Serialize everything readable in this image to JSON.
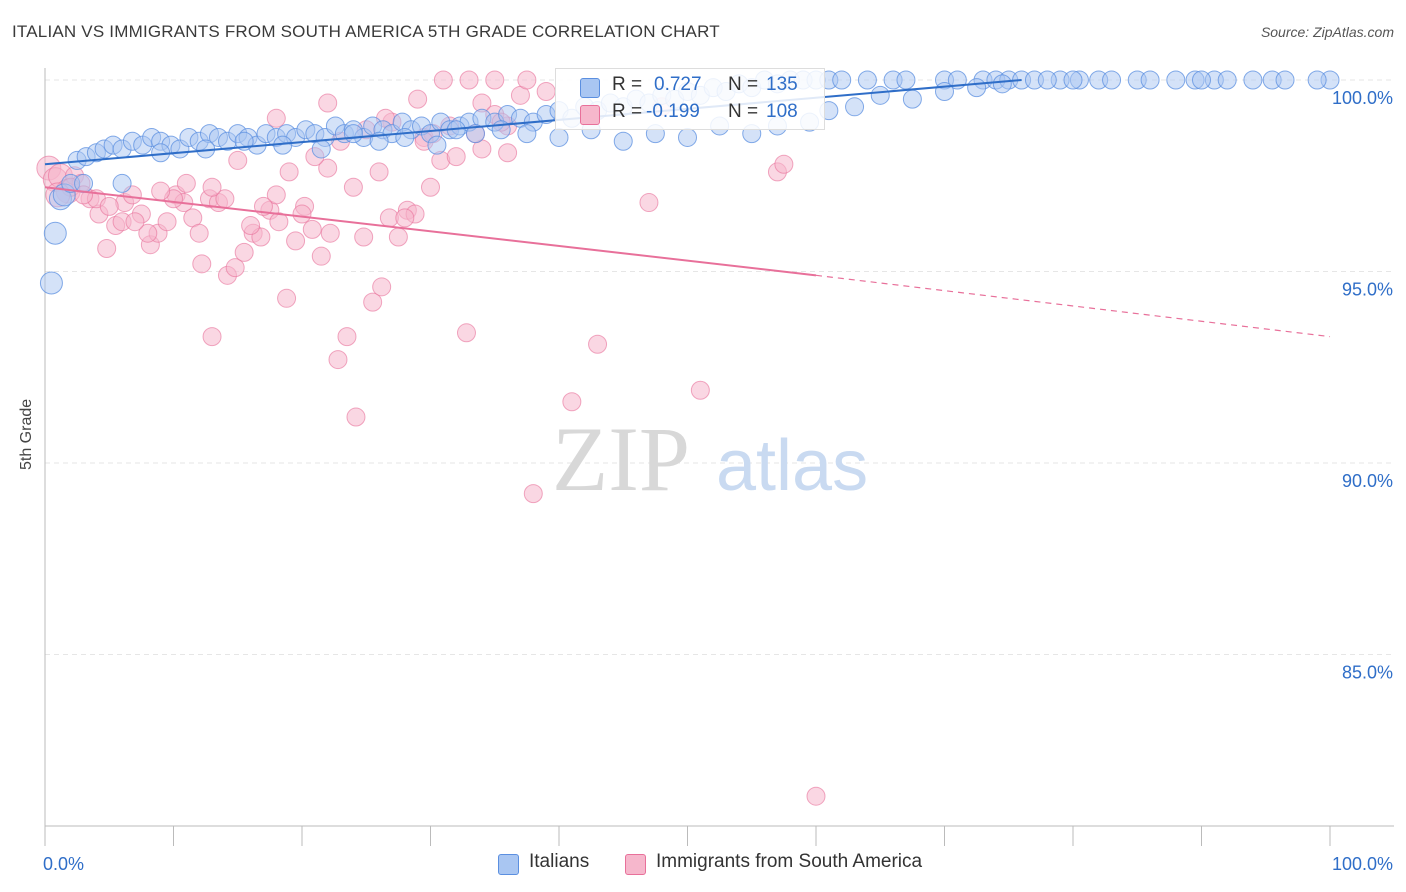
{
  "header": {
    "title": "ITALIAN VS IMMIGRANTS FROM SOUTH AMERICA 5TH GRADE CORRELATION CHART",
    "source": "Source: ZipAtlas.com"
  },
  "watermark": {
    "zip": "ZIP",
    "atlas": "atlas"
  },
  "colors": {
    "blue": "#5b8fe0",
    "blue_fill": "#a9c6f2",
    "pink": "#e8709a",
    "pink_fill": "#f6b7cc",
    "value_text": "#2f6ec8"
  },
  "stats": {
    "italians": {
      "r_label": "R =",
      "r_value": "0.727",
      "n_label": "N =",
      "n_value": "135"
    },
    "immigrants": {
      "r_label": "R =",
      "r_value": "-0.199",
      "n_label": "N =",
      "n_value": "108"
    }
  },
  "legend": {
    "italians": "Italians",
    "immigrants": "Immigrants from South America"
  },
  "chart_data": {
    "type": "scatter",
    "title": "ITALIAN VS IMMIGRANTS FROM SOUTH AMERICA 5TH GRADE CORRELATION CHART",
    "xlabel": "",
    "ylabel": "5th Grade",
    "xlim": [
      0,
      100
    ],
    "ylim": [
      80.3,
      100.6
    ],
    "x_tick_labels": [
      "0.0%",
      "100.0%"
    ],
    "y_ticks": [
      100,
      95,
      90,
      85
    ],
    "y_tick_labels": [
      "100.0%",
      "95.0%",
      "90.0%",
      "85.0%"
    ],
    "grid": true,
    "series": [
      {
        "name": "Italians",
        "color": "#5b8fe0",
        "r": 0.727,
        "n": 135,
        "trend": {
          "x": [
            0,
            76
          ],
          "y": [
            97.8,
            100.0
          ]
        },
        "points": [
          [
            0.5,
            94.7
          ],
          [
            0.8,
            96.0
          ],
          [
            1.2,
            96.9
          ],
          [
            1.5,
            97.0
          ],
          [
            2.0,
            97.3
          ],
          [
            2.5,
            97.9
          ],
          [
            3.2,
            98.0
          ],
          [
            4.0,
            98.1
          ],
          [
            4.6,
            98.2
          ],
          [
            5.3,
            98.3
          ],
          [
            6.0,
            98.2
          ],
          [
            6.8,
            98.4
          ],
          [
            7.6,
            98.3
          ],
          [
            8.3,
            98.5
          ],
          [
            9.0,
            98.4
          ],
          [
            9.8,
            98.3
          ],
          [
            10.5,
            98.2
          ],
          [
            11.2,
            98.5
          ],
          [
            12.0,
            98.4
          ],
          [
            12.8,
            98.6
          ],
          [
            13.5,
            98.5
          ],
          [
            14.2,
            98.4
          ],
          [
            15.0,
            98.6
          ],
          [
            15.8,
            98.5
          ],
          [
            16.5,
            98.3
          ],
          [
            17.2,
            98.6
          ],
          [
            18.0,
            98.5
          ],
          [
            18.8,
            98.6
          ],
          [
            19.5,
            98.5
          ],
          [
            20.3,
            98.7
          ],
          [
            21.0,
            98.6
          ],
          [
            21.8,
            98.5
          ],
          [
            22.6,
            98.8
          ],
          [
            23.3,
            98.6
          ],
          [
            24.0,
            98.7
          ],
          [
            24.8,
            98.5
          ],
          [
            25.5,
            98.8
          ],
          [
            26.3,
            98.7
          ],
          [
            27.0,
            98.6
          ],
          [
            27.8,
            98.9
          ],
          [
            28.5,
            98.7
          ],
          [
            29.3,
            98.8
          ],
          [
            30.0,
            98.6
          ],
          [
            30.8,
            98.9
          ],
          [
            31.5,
            98.7
          ],
          [
            32.3,
            98.8
          ],
          [
            33.0,
            98.9
          ],
          [
            34.0,
            99.0
          ],
          [
            35.0,
            98.9
          ],
          [
            36.0,
            99.1
          ],
          [
            37.0,
            99.0
          ],
          [
            38.0,
            98.9
          ],
          [
            39.0,
            99.1
          ],
          [
            40.0,
            99.2
          ],
          [
            41.0,
            99.0
          ],
          [
            42.0,
            99.3
          ],
          [
            43.0,
            99.2
          ],
          [
            44.0,
            99.4
          ],
          [
            45.0,
            99.3
          ],
          [
            46.0,
            99.5
          ],
          [
            47.0,
            99.4
          ],
          [
            48.0,
            99.6
          ],
          [
            49.0,
            99.5
          ],
          [
            50.0,
            99.7
          ],
          [
            51.0,
            99.6
          ],
          [
            52.0,
            99.8
          ],
          [
            53.0,
            99.7
          ],
          [
            54.0,
            99.9
          ],
          [
            55.0,
            99.8
          ],
          [
            56.0,
            100.0
          ],
          [
            57.0,
            99.9
          ],
          [
            58.0,
            100.0
          ],
          [
            59.0,
            100.0
          ],
          [
            60.0,
            100.0
          ],
          [
            61.0,
            100.0
          ],
          [
            62.0,
            100.0
          ],
          [
            64.0,
            100.0
          ],
          [
            66.0,
            100.0
          ],
          [
            67.0,
            100.0
          ],
          [
            70.0,
            100.0
          ],
          [
            71.0,
            100.0
          ],
          [
            73.0,
            100.0
          ],
          [
            74.0,
            100.0
          ],
          [
            75.0,
            100.0
          ],
          [
            76.0,
            100.0
          ],
          [
            79.0,
            100.0
          ],
          [
            80.5,
            100.0
          ],
          [
            82.0,
            100.0
          ],
          [
            85.0,
            100.0
          ],
          [
            88.0,
            100.0
          ],
          [
            89.5,
            100.0
          ],
          [
            91.0,
            100.0
          ],
          [
            94.0,
            100.0
          ],
          [
            95.5,
            100.0
          ],
          [
            96.5,
            100.0
          ],
          [
            100.0,
            100.0
          ],
          [
            3.0,
            97.3
          ],
          [
            6.0,
            97.3
          ],
          [
            9.0,
            98.1
          ],
          [
            12.5,
            98.2
          ],
          [
            15.5,
            98.4
          ],
          [
            18.5,
            98.3
          ],
          [
            21.5,
            98.2
          ],
          [
            24.0,
            98.6
          ],
          [
            26.0,
            98.4
          ],
          [
            28.0,
            98.5
          ],
          [
            30.5,
            98.3
          ],
          [
            32.0,
            98.7
          ],
          [
            33.5,
            98.6
          ],
          [
            35.5,
            98.7
          ],
          [
            37.5,
            98.6
          ],
          [
            40.0,
            98.5
          ],
          [
            42.5,
            98.7
          ],
          [
            45.0,
            98.4
          ],
          [
            47.5,
            98.6
          ],
          [
            50.0,
            98.5
          ],
          [
            52.5,
            98.8
          ],
          [
            55.0,
            98.6
          ],
          [
            57.0,
            98.8
          ],
          [
            59.5,
            98.9
          ],
          [
            61.0,
            99.2
          ],
          [
            63.0,
            99.3
          ],
          [
            65.0,
            99.6
          ],
          [
            67.5,
            99.5
          ],
          [
            70.0,
            99.7
          ],
          [
            72.5,
            99.8
          ],
          [
            74.5,
            99.9
          ],
          [
            77.0,
            100.0
          ],
          [
            78.0,
            100.0
          ],
          [
            80.0,
            100.0
          ],
          [
            83.0,
            100.0
          ],
          [
            86.0,
            100.0
          ],
          [
            90.0,
            100.0
          ],
          [
            92.0,
            100.0
          ],
          [
            99.0,
            100.0
          ]
        ]
      },
      {
        "name": "Immigrants from South America",
        "color": "#e8709a",
        "r": -0.199,
        "n": 108,
        "trend": {
          "x": [
            0,
            60
          ],
          "y": [
            97.2,
            94.9
          ]
        },
        "trend_dashed": {
          "x": [
            60,
            100
          ],
          "y": [
            94.9,
            93.3
          ]
        },
        "points": [
          [
            0.3,
            97.7
          ],
          [
            0.8,
            97.4
          ],
          [
            1.2,
            97.5
          ],
          [
            1.8,
            97.1
          ],
          [
            2.3,
            97.5
          ],
          [
            2.8,
            97.3
          ],
          [
            3.5,
            96.9
          ],
          [
            4.2,
            96.5
          ],
          [
            4.8,
            95.6
          ],
          [
            5.5,
            96.2
          ],
          [
            6.2,
            96.8
          ],
          [
            6.8,
            97.0
          ],
          [
            7.5,
            96.5
          ],
          [
            8.2,
            95.7
          ],
          [
            8.8,
            96.0
          ],
          [
            9.5,
            96.3
          ],
          [
            10.2,
            97.0
          ],
          [
            10.8,
            96.8
          ],
          [
            11.5,
            96.4
          ],
          [
            12.2,
            95.2
          ],
          [
            12.8,
            96.9
          ],
          [
            13.5,
            96.8
          ],
          [
            14.2,
            94.9
          ],
          [
            14.8,
            95.1
          ],
          [
            15.5,
            95.5
          ],
          [
            16.2,
            96.0
          ],
          [
            16.8,
            95.9
          ],
          [
            17.5,
            96.6
          ],
          [
            18.2,
            96.3
          ],
          [
            18.8,
            94.3
          ],
          [
            19.5,
            95.8
          ],
          [
            20.2,
            96.7
          ],
          [
            20.8,
            96.1
          ],
          [
            21.5,
            95.4
          ],
          [
            22.2,
            96.0
          ],
          [
            22.8,
            92.7
          ],
          [
            23.5,
            93.3
          ],
          [
            24.2,
            91.2
          ],
          [
            24.8,
            95.9
          ],
          [
            25.5,
            94.2
          ],
          [
            26.2,
            94.6
          ],
          [
            26.8,
            96.4
          ],
          [
            27.5,
            95.9
          ],
          [
            28.2,
            96.6
          ],
          [
            28.8,
            96.5
          ],
          [
            29.5,
            98.5
          ],
          [
            30.2,
            98.6
          ],
          [
            30.8,
            97.9
          ],
          [
            32.8,
            93.4
          ],
          [
            34.0,
            99.4
          ],
          [
            35.0,
            99.1
          ],
          [
            36.0,
            98.8
          ],
          [
            37.0,
            99.6
          ],
          [
            38.0,
            89.2
          ],
          [
            41.0,
            91.6
          ],
          [
            43.0,
            93.1
          ],
          [
            47.0,
            96.8
          ],
          [
            48.0,
            99.3
          ],
          [
            51.0,
            91.9
          ],
          [
            57.0,
            97.6
          ],
          [
            57.5,
            97.8
          ],
          [
            60.0,
            81.3
          ],
          [
            2.0,
            97.2
          ],
          [
            4.0,
            96.9
          ],
          [
            6.0,
            96.3
          ],
          [
            8.0,
            96.0
          ],
          [
            10.0,
            96.9
          ],
          [
            12.0,
            96.0
          ],
          [
            14.0,
            96.9
          ],
          [
            16.0,
            96.2
          ],
          [
            18.0,
            97.0
          ],
          [
            20.0,
            96.5
          ],
          [
            22.0,
            97.7
          ],
          [
            24.0,
            97.2
          ],
          [
            26.0,
            97.6
          ],
          [
            28.0,
            96.4
          ],
          [
            30.0,
            97.2
          ],
          [
            32.0,
            98.0
          ],
          [
            34.0,
            98.2
          ],
          [
            36.0,
            98.1
          ],
          [
            1.0,
            97.0
          ],
          [
            3.0,
            97.0
          ],
          [
            5.0,
            96.7
          ],
          [
            7.0,
            96.3
          ],
          [
            9.0,
            97.1
          ],
          [
            11.0,
            97.3
          ],
          [
            13.0,
            97.2
          ],
          [
            15.0,
            97.9
          ],
          [
            17.0,
            96.7
          ],
          [
            19.0,
            97.6
          ],
          [
            21.0,
            98.0
          ],
          [
            23.0,
            98.4
          ],
          [
            25.0,
            98.7
          ],
          [
            27.0,
            98.9
          ],
          [
            29.0,
            99.5
          ],
          [
            31.0,
            100.0
          ],
          [
            33.0,
            100.0
          ],
          [
            35.0,
            100.0
          ],
          [
            37.5,
            100.0
          ],
          [
            39.0,
            99.7
          ],
          [
            13.0,
            93.3
          ],
          [
            18.0,
            99.0
          ],
          [
            22.0,
            99.4
          ],
          [
            26.5,
            99.0
          ],
          [
            29.5,
            98.4
          ],
          [
            31.5,
            98.8
          ],
          [
            33.5,
            98.6
          ],
          [
            35.5,
            98.9
          ]
        ]
      }
    ]
  }
}
